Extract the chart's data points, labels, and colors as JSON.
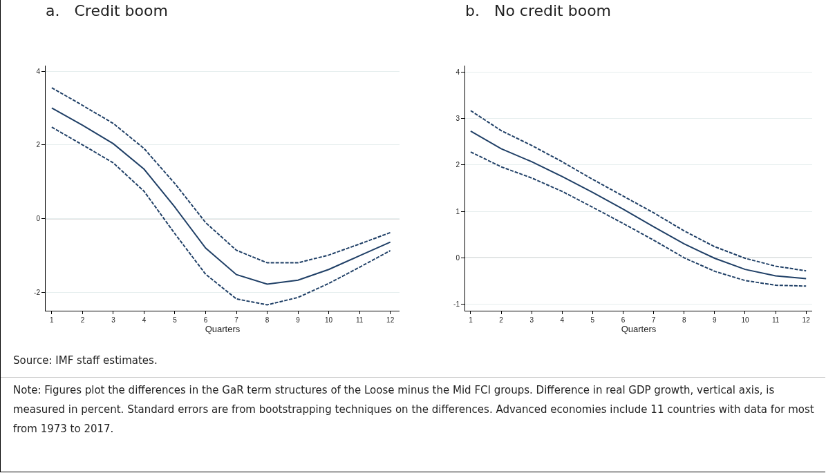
{
  "chart_data": [
    {
      "type": "line",
      "title": "a.   Credit boom",
      "xlabel": "Quarters",
      "x": [
        1,
        2,
        3,
        4,
        5,
        6,
        7,
        8,
        9,
        10,
        11,
        12
      ],
      "series": [
        {
          "color": "#1f3f66",
          "line_style": "dashed",
          "values": [
            3.55,
            3.07,
            2.58,
            1.9,
            0.95,
            -0.11,
            -0.86,
            -1.2,
            -1.2,
            -0.99,
            -0.69,
            -0.38
          ]
        },
        {
          "color": "#1f3f66",
          "line_style": "solid",
          "values": [
            3.0,
            2.53,
            2.03,
            1.34,
            0.31,
            -0.8,
            -1.52,
            -1.78,
            -1.67,
            -1.38,
            -1.01,
            -0.64
          ]
        },
        {
          "color": "#1f3f66",
          "line_style": "dashed",
          "values": [
            2.48,
            2.0,
            1.51,
            0.74,
            -0.41,
            -1.51,
            -2.18,
            -2.34,
            -2.14,
            -1.76,
            -1.32,
            -0.87
          ]
        }
      ],
      "xlim": [
        0.8,
        12.3
      ],
      "xticks": [
        1,
        2,
        3,
        4,
        5,
        6,
        7,
        8,
        9,
        10,
        11,
        12
      ],
      "ylim": [
        -2.5,
        4.15
      ],
      "yticks": [
        -2,
        0,
        2,
        4
      ],
      "grid": "y",
      "marker": "none",
      "ref_lines": [
        {
          "axis": "y",
          "value": 0,
          "color": "#808080"
        }
      ],
      "annotations": [
        "Source: IMF staff estimates.",
        "Note: Figures plot the differences in the GaR term structures of the Loose minus the Mid FCI groups. Difference in real GDP growth, vertical axis, is measured in percent. Standard errors are from bootstrapping techniques on the differences. Advanced economies include 11 countries with data for most from 1973 to 2017."
      ]
    },
    {
      "type": "line",
      "title": "b.   No credit boom",
      "xlabel": "Quarters",
      "x": [
        1,
        2,
        3,
        4,
        5,
        6,
        7,
        8,
        9,
        10,
        11,
        12
      ],
      "series": [
        {
          "color": "#1f3f66",
          "line_style": "dashed",
          "values": [
            3.17,
            2.74,
            2.42,
            2.07,
            1.69,
            1.33,
            0.97,
            0.58,
            0.24,
            -0.01,
            -0.18,
            -0.28
          ]
        },
        {
          "color": "#1f3f66",
          "line_style": "solid",
          "values": [
            2.73,
            2.35,
            2.07,
            1.75,
            1.41,
            1.05,
            0.67,
            0.3,
            -0.01,
            -0.25,
            -0.39,
            -0.45
          ]
        },
        {
          "color": "#1f3f66",
          "line_style": "dashed",
          "values": [
            2.28,
            1.96,
            1.72,
            1.43,
            1.09,
            0.74,
            0.38,
            0.0,
            -0.29,
            -0.49,
            -0.59,
            -0.61
          ]
        }
      ],
      "xlim": [
        0.82,
        12.2
      ],
      "xticks": [
        1,
        2,
        3,
        4,
        5,
        6,
        7,
        8,
        9,
        10,
        11,
        12
      ],
      "ylim": [
        -1.14,
        4.14
      ],
      "yticks": [
        -1,
        0,
        1,
        2,
        3,
        4
      ],
      "grid": "y",
      "marker": "none",
      "ref_lines": [
        {
          "axis": "y",
          "value": 0,
          "color": "#808080"
        }
      ]
    }
  ]
}
